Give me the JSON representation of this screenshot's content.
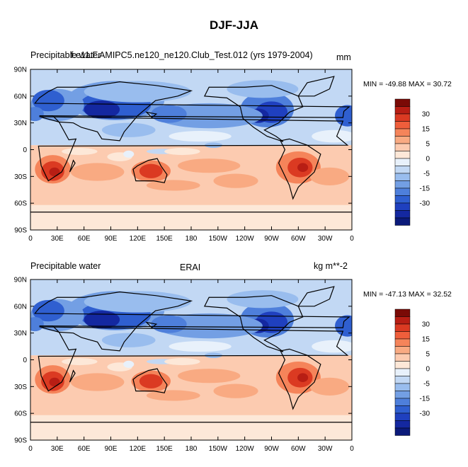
{
  "page_title": "DJF-JJA",
  "chart_data": [
    {
      "type": "heatmap",
      "subtype": "filled-contour-map",
      "left_title": "Precipitable water",
      "center_title": "f.e11.F.AMIPC5.ne120_ne120.Club_Test.012 (yrs 1979-2004)",
      "units": "mm",
      "stats": "MIN = -49.88 MAX =  30.72",
      "min": -49.88,
      "max": 30.72,
      "xlim": [
        0,
        360
      ],
      "ylim": [
        -90,
        90
      ],
      "x_ticks": [
        "0",
        "30E",
        "60E",
        "90E",
        "120E",
        "150E",
        "180",
        "150W",
        "120W",
        "90W",
        "60W",
        "30W",
        "0"
      ],
      "y_ticks": [
        "90N",
        "60N",
        "30N",
        "0",
        "30S",
        "60S",
        "90S"
      ]
    },
    {
      "type": "heatmap",
      "subtype": "filled-contour-map",
      "left_title": "Precipitable water",
      "center_title": "ERAI",
      "units": "kg m**-2",
      "stats": "MIN = -47.13 MAX =  32.52",
      "min": -47.13,
      "max": 32.52,
      "xlim": [
        0,
        360
      ],
      "ylim": [
        -90,
        90
      ],
      "x_ticks": [
        "0",
        "30E",
        "60E",
        "90E",
        "120E",
        "150E",
        "180",
        "150W",
        "120W",
        "90W",
        "60W",
        "30W",
        "0"
      ],
      "y_ticks": [
        "90N",
        "60N",
        "30N",
        "0",
        "30S",
        "60S",
        "90S"
      ]
    }
  ],
  "colorbar": {
    "labels": [
      "30",
      "15",
      "5",
      "0",
      "-5",
      "-15",
      "-30"
    ],
    "colors": [
      "#7a0a06",
      "#b81e14",
      "#db3a22",
      "#ef5e3b",
      "#f5845a",
      "#f9aa82",
      "#fccbb0",
      "#fde8d8",
      "#e8f1fb",
      "#c2d8f4",
      "#99bdee",
      "#739fe4",
      "#4e7fdb",
      "#2f5fd0",
      "#1f40bf",
      "#1428a0",
      "#0b1a7a"
    ]
  }
}
